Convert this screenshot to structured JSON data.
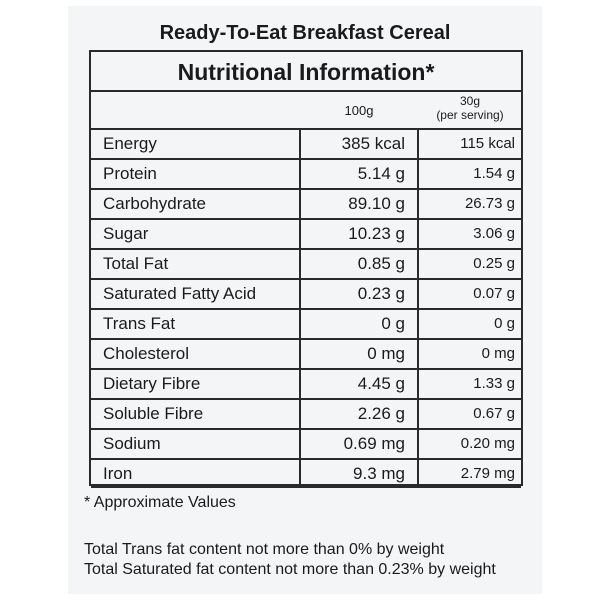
{
  "label": {
    "title": "Ready-To-Eat Breakfast Cereal",
    "subtitle": "Nutritional Information*",
    "columns": {
      "per100": "100g",
      "perServing_line1": "30g",
      "perServing_line2": "(per serving)"
    },
    "rows": [
      {
        "name": "Energy",
        "per100": "385 kcal",
        "perServing": "115 kcal"
      },
      {
        "name": "Protein",
        "per100": "5.14 g",
        "perServing": "1.54 g"
      },
      {
        "name": "Carbohydrate",
        "per100": "89.10 g",
        "perServing": "26.73 g"
      },
      {
        "name": "Sugar",
        "per100": "10.23 g",
        "perServing": "3.06 g"
      },
      {
        "name": "Total Fat",
        "per100": "0.85 g",
        "perServing": "0.25 g"
      },
      {
        "name": "Saturated Fatty Acid",
        "per100": "0.23 g",
        "perServing": "0.07 g"
      },
      {
        "name": "Trans Fat",
        "per100": "0 g",
        "perServing": "0 g"
      },
      {
        "name": "Cholesterol",
        "per100": "0 mg",
        "perServing": "0 mg"
      },
      {
        "name": "Dietary Fibre",
        "per100": "4.45 g",
        "perServing": "1.33 g"
      },
      {
        "name": "Soluble Fibre",
        "per100": "2.26 g",
        "perServing": "0.67 g"
      },
      {
        "name": "Sodium",
        "per100": "0.69 mg",
        "perServing": "0.20 mg"
      },
      {
        "name": "Iron",
        "per100": "9.3 mg",
        "perServing": "2.79 mg"
      }
    ],
    "footnote": "* Approximate Values",
    "notes": [
      "Total Trans fat content not more than 0% by weight",
      "Total Saturated fat content not more than 0.23% by weight"
    ]
  }
}
